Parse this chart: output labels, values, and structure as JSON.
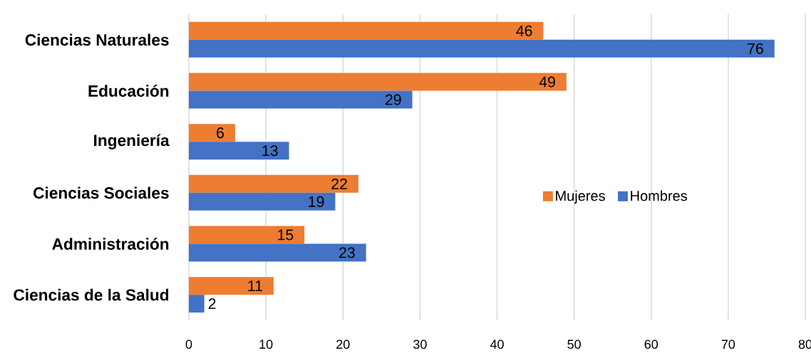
{
  "chart_data": {
    "type": "bar",
    "orientation": "horizontal",
    "categories": [
      "Ciencias Naturales",
      "Educación",
      "Ingeniería",
      "Ciencias Sociales",
      "Administración",
      "Ciencias de la Salud"
    ],
    "series": [
      {
        "name": "Mujeres",
        "color": "#ed7d31",
        "values": [
          46,
          49,
          6,
          22,
          15,
          11
        ]
      },
      {
        "name": "Hombres",
        "color": "#4472c4",
        "values": [
          76,
          29,
          13,
          19,
          23,
          2
        ]
      }
    ],
    "xlim": [
      0,
      80
    ],
    "xticks": [
      0,
      10,
      20,
      30,
      40,
      50,
      60,
      70,
      80
    ],
    "grid": "x",
    "legend": "right",
    "data_labels": true
  }
}
